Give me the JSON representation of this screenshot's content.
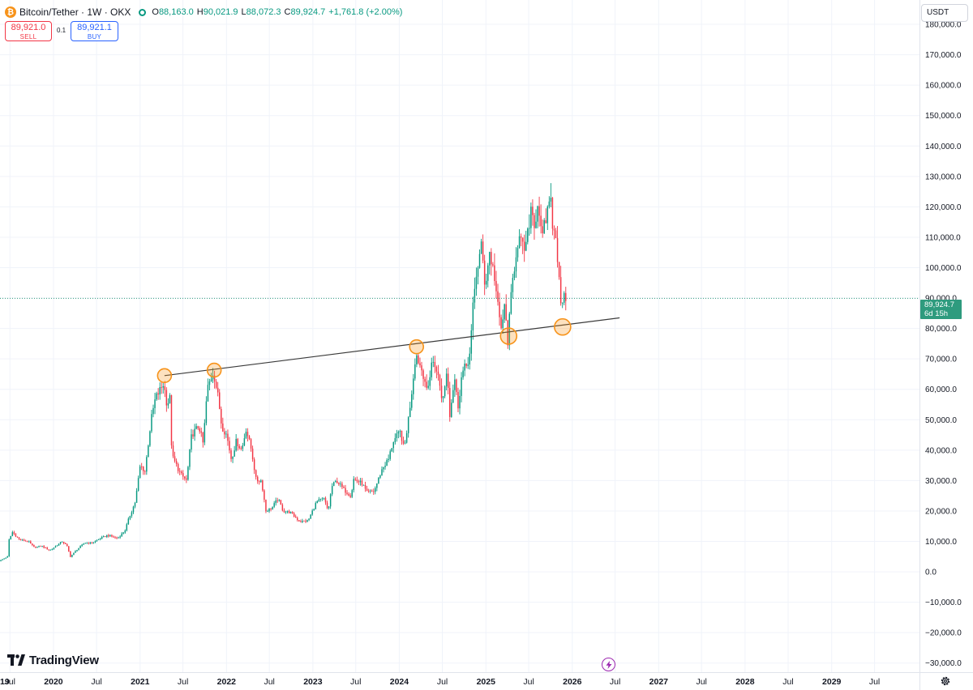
{
  "legend": {
    "logo_glyph": "₿",
    "symbol": "Bitcoin/Tether · 1W · OKX",
    "o_label": "O",
    "o_value": "88,163.0",
    "h_label": "H",
    "h_value": "90,021.9",
    "l_label": "L",
    "l_value": "88,072.3",
    "c_label": "C",
    "c_value": "89,924.7",
    "change": "+1,761.8 (+2.00%)"
  },
  "trade": {
    "sell_price": "89,921.0",
    "sell_label": "SELL",
    "spread": "0.1",
    "buy_price": "89,921.1",
    "buy_label": "BUY"
  },
  "currency": "USDT",
  "last_price": {
    "value": "89,924.7",
    "countdown": "6d 15h"
  },
  "branding": {
    "name": "TradingView"
  },
  "colors": {
    "up": "#089981",
    "down": "#f23645",
    "marker": "#f7931a",
    "trendline": "#3a3a3a",
    "last_price_tag": "#2e9b7e"
  },
  "chart_data": {
    "type": "candlestick",
    "timeframe": "1W",
    "y_unit": "USDT",
    "ylim": [
      -33000,
      188000
    ],
    "xlim": [
      "2019-05-20",
      "2030-01-07"
    ],
    "grid": true,
    "y_ticks": [
      180000,
      170000,
      160000,
      150000,
      140000,
      130000,
      120000,
      110000,
      100000,
      90000,
      80000,
      70000,
      60000,
      50000,
      40000,
      30000,
      20000,
      10000,
      0,
      -10000,
      -20000,
      -30000
    ],
    "y_tick_labels": [
      "180,000.0",
      "170,000.0",
      "160,000.0",
      "150,000.0",
      "140,000.0",
      "130,000.0",
      "120,000.0",
      "110,000.0",
      "100,000.0",
      "90,000.0",
      "80,000.0",
      "70,000.0",
      "60,000.0",
      "50,000.0",
      "40,000.0",
      "30,000.0",
      "20,000.0",
      "10,000.0",
      "0.0",
      "−10,000.0",
      "−20,000.0",
      "−30,000.0"
    ],
    "x_ticks": [
      {
        "date": "2019-07-01",
        "label": "Jul",
        "bold": false
      },
      {
        "date": "2020-01-01",
        "label": "2020",
        "bold": true
      },
      {
        "date": "2020-07-01",
        "label": "Jul",
        "bold": false
      },
      {
        "date": "2021-01-01",
        "label": "2021",
        "bold": true
      },
      {
        "date": "2021-07-01",
        "label": "Jul",
        "bold": false
      },
      {
        "date": "2022-01-01",
        "label": "2022",
        "bold": true
      },
      {
        "date": "2022-07-01",
        "label": "Jul",
        "bold": false
      },
      {
        "date": "2023-01-01",
        "label": "2023",
        "bold": true
      },
      {
        "date": "2023-07-01",
        "label": "Jul",
        "bold": false
      },
      {
        "date": "2024-01-01",
        "label": "2024",
        "bold": true
      },
      {
        "date": "2024-07-01",
        "label": "Jul",
        "bold": false
      },
      {
        "date": "2025-01-01",
        "label": "2025",
        "bold": true
      },
      {
        "date": "2025-07-01",
        "label": "Jul",
        "bold": false
      },
      {
        "date": "2026-01-01",
        "label": "2026",
        "bold": true
      },
      {
        "date": "2026-07-01",
        "label": "Jul",
        "bold": false
      },
      {
        "date": "2027-01-01",
        "label": "2027",
        "bold": true
      },
      {
        "date": "2027-07-01",
        "label": "Jul",
        "bold": false
      },
      {
        "date": "2028-01-01",
        "label": "2028",
        "bold": true
      },
      {
        "date": "2028-07-01",
        "label": "Jul",
        "bold": false
      },
      {
        "date": "2029-01-01",
        "label": "2029",
        "bold": true
      },
      {
        "date": "2029-07-01",
        "label": "Jul",
        "bold": false
      },
      {
        "date": "2019-01-01",
        "label": "19",
        "bold": true
      }
    ],
    "price_path": [
      [
        "2019-05-20",
        3500
      ],
      [
        "2019-06-24",
        5000
      ],
      [
        "2019-07-01",
        10500
      ],
      [
        "2019-07-15",
        13000
      ],
      [
        "2019-08-15",
        10500
      ],
      [
        "2019-09-20",
        10000
      ],
      [
        "2019-10-15",
        8000
      ],
      [
        "2019-11-15",
        8500
      ],
      [
        "2019-12-20",
        7000
      ],
      [
        "2020-02-10",
        10000
      ],
      [
        "2020-03-01",
        8500
      ],
      [
        "2020-03-16",
        5000
      ],
      [
        "2020-04-15",
        7500
      ],
      [
        "2020-05-15",
        9500
      ],
      [
        "2020-06-15",
        9500
      ],
      [
        "2020-07-20",
        11000
      ],
      [
        "2020-08-20",
        12000
      ],
      [
        "2020-10-01",
        11000
      ],
      [
        "2020-11-01",
        13500
      ],
      [
        "2020-11-20",
        18000
      ],
      [
        "2020-12-15",
        23000
      ],
      [
        "2021-01-05",
        35000
      ],
      [
        "2021-01-25",
        33000
      ],
      [
        "2021-02-20",
        50000
      ],
      [
        "2021-03-10",
        57000
      ],
      [
        "2021-04-14",
        62000
      ],
      [
        "2021-04-28",
        55000
      ],
      [
        "2021-05-10",
        57000
      ],
      [
        "2021-05-19",
        38000
      ],
      [
        "2021-06-01",
        36000
      ],
      [
        "2021-06-25",
        32000
      ],
      [
        "2021-07-20",
        30000
      ],
      [
        "2021-08-10",
        45000
      ],
      [
        "2021-09-10",
        48000
      ],
      [
        "2021-09-28",
        42000
      ],
      [
        "2021-10-15",
        60000
      ],
      [
        "2021-11-10",
        66000
      ],
      [
        "2021-12-01",
        57000
      ],
      [
        "2021-12-15",
        48000
      ],
      [
        "2022-01-05",
        45000
      ],
      [
        "2022-01-25",
        37000
      ],
      [
        "2022-02-15",
        43000
      ],
      [
        "2022-03-10",
        40000
      ],
      [
        "2022-03-28",
        47000
      ],
      [
        "2022-04-20",
        40000
      ],
      [
        "2022-05-10",
        30000
      ],
      [
        "2022-06-01",
        30000
      ],
      [
        "2022-06-20",
        20000
      ],
      [
        "2022-07-15",
        21000
      ],
      [
        "2022-08-10",
        24000
      ],
      [
        "2022-09-01",
        20000
      ],
      [
        "2022-10-01",
        19500
      ],
      [
        "2022-11-10",
        16500
      ],
      [
        "2022-12-15",
        16800
      ],
      [
        "2023-01-20",
        23000
      ],
      [
        "2023-02-20",
        24000
      ],
      [
        "2023-03-10",
        20000
      ],
      [
        "2023-03-25",
        28000
      ],
      [
        "2023-04-15",
        30000
      ],
      [
        "2023-05-15",
        27000
      ],
      [
        "2023-06-15",
        25000
      ],
      [
        "2023-06-25",
        30500
      ],
      [
        "2023-08-01",
        29000
      ],
      [
        "2023-08-20",
        26000
      ],
      [
        "2023-09-20",
        26500
      ],
      [
        "2023-10-25",
        34000
      ],
      [
        "2023-11-20",
        37000
      ],
      [
        "2023-12-10",
        43000
      ],
      [
        "2024-01-10",
        46000
      ],
      [
        "2024-01-25",
        40000
      ],
      [
        "2024-02-15",
        52000
      ],
      [
        "2024-03-01",
        62000
      ],
      [
        "2024-03-14",
        72000
      ],
      [
        "2024-04-01",
        68000
      ],
      [
        "2024-04-20",
        64000
      ],
      [
        "2024-05-01",
        58000
      ],
      [
        "2024-05-20",
        69000
      ],
      [
        "2024-06-10",
        67000
      ],
      [
        "2024-07-05",
        56000
      ],
      [
        "2024-07-25",
        67000
      ],
      [
        "2024-08-05",
        52000
      ],
      [
        "2024-08-25",
        64000
      ],
      [
        "2024-09-08",
        54000
      ],
      [
        "2024-09-25",
        65000
      ],
      [
        "2024-10-15",
        68000
      ],
      [
        "2024-10-30",
        72000
      ],
      [
        "2024-11-12",
        88000
      ],
      [
        "2024-11-25",
        98000
      ],
      [
        "2024-12-17",
        107000
      ],
      [
        "2025-01-01",
        94000
      ],
      [
        "2025-01-20",
        105000
      ],
      [
        "2025-02-10",
        97000
      ],
      [
        "2025-02-28",
        84000
      ],
      [
        "2025-03-10",
        80000
      ],
      [
        "2025-03-25",
        87000
      ],
      [
        "2025-04-07",
        76000
      ],
      [
        "2025-04-25",
        94000
      ],
      [
        "2025-05-10",
        104000
      ],
      [
        "2025-05-22",
        110000
      ],
      [
        "2025-06-10",
        106000
      ],
      [
        "2025-06-25",
        107000
      ],
      [
        "2025-07-14",
        120000
      ],
      [
        "2025-08-01",
        114000
      ],
      [
        "2025-08-14",
        123000
      ],
      [
        "2025-08-28",
        108000
      ],
      [
        "2025-09-15",
        116000
      ],
      [
        "2025-10-06",
        125000
      ],
      [
        "2025-10-12",
        111000
      ],
      [
        "2025-10-28",
        112000
      ],
      [
        "2025-11-05",
        101000
      ],
      [
        "2025-11-14",
        94000
      ],
      [
        "2025-11-21",
        85000
      ],
      [
        "2025-11-28",
        91000
      ],
      [
        "2025-12-02",
        89925
      ]
    ],
    "trendline": {
      "start": [
        "2021-04-14",
        64500
      ],
      "end": [
        "2026-07-20",
        83500
      ]
    },
    "markers": [
      {
        "date": "2021-04-14",
        "price": 64500
      },
      {
        "date": "2021-11-10",
        "price": 66300
      },
      {
        "date": "2024-03-14",
        "price": 74000
      },
      {
        "date": "2025-04-07",
        "price": 77500
      },
      {
        "date": "2025-11-21",
        "price": 80500
      }
    ],
    "last_price": 89924.7
  }
}
